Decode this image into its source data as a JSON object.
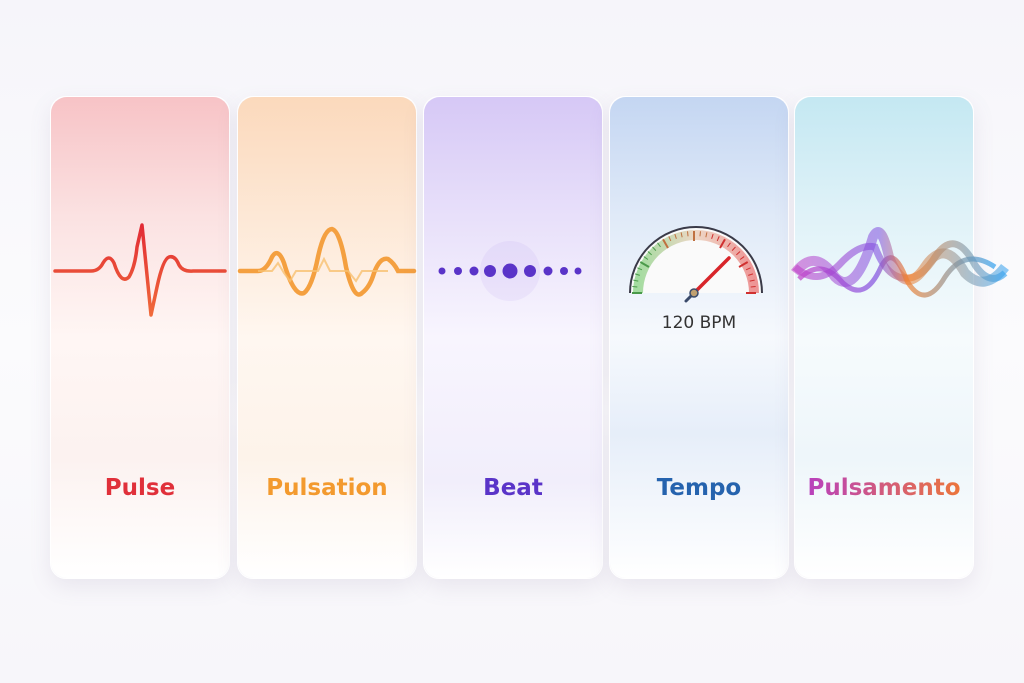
{
  "cards": [
    {
      "label": "Pulse",
      "icon": "heartbeat-line-icon",
      "color": "#e0303a",
      "tint": "#f7c6c8"
    },
    {
      "label": "Pulsation",
      "icon": "oscillating-wave-icon",
      "color": "#f39a2e",
      "tint": "#fbdcc0"
    },
    {
      "label": "Beat",
      "icon": "rhythm-dots-icon",
      "color": "#5a34c8",
      "tint": "#d8ccf5"
    },
    {
      "label": "Tempo",
      "icon": "speedometer-gauge-icon",
      "color": "#2563ae",
      "tint": "#c6d8f2",
      "gauge_text": "120 BPM",
      "gauge_value_bpm": 120
    },
    {
      "label": "Pulsamento",
      "icon": "colorful-waves-icon",
      "color_start": "#b43cc8",
      "color_end": "#f07a30",
      "tint": "#c8eaf2"
    }
  ]
}
